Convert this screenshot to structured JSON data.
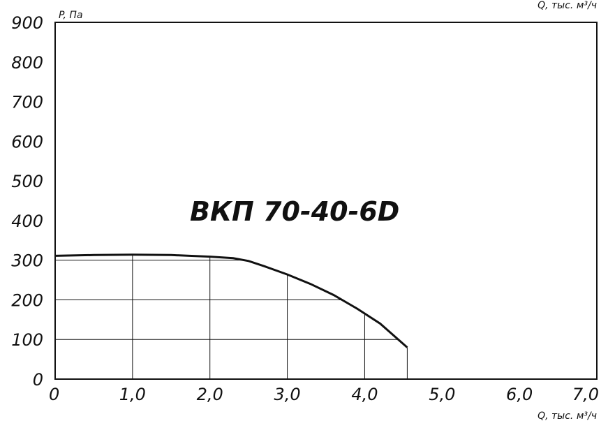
{
  "chart_data": {
    "type": "line",
    "title": "ВКП 70-40-6D",
    "xlabel": "Q, тыс. м³/ч",
    "ylabel": "P, Па",
    "xlim": [
      0,
      7
    ],
    "ylim": [
      0,
      900
    ],
    "x_ticks": [
      0,
      1,
      2,
      3,
      4,
      5,
      6,
      7
    ],
    "x_tick_labels": [
      "0",
      "1,0",
      "2,0",
      "3,0",
      "4,0",
      "5,0",
      "6,0",
      "7,0"
    ],
    "y_ticks": [
      0,
      100,
      200,
      300,
      400,
      500,
      600,
      700,
      800,
      900
    ],
    "y_tick_labels": [
      "0",
      "100",
      "200",
      "300",
      "400",
      "500",
      "600",
      "700",
      "800",
      "900"
    ],
    "grid": "only under the curve",
    "series": [
      {
        "x": [
          0,
          0.5,
          1.0,
          1.5,
          2.0,
          2.3,
          2.5,
          2.7,
          3.0,
          3.3,
          3.6,
          3.9,
          4.2,
          4.55
        ],
        "y": [
          311,
          313,
          314,
          313,
          309,
          305,
          298,
          285,
          264,
          240,
          212,
          178,
          140,
          80
        ]
      }
    ]
  }
}
